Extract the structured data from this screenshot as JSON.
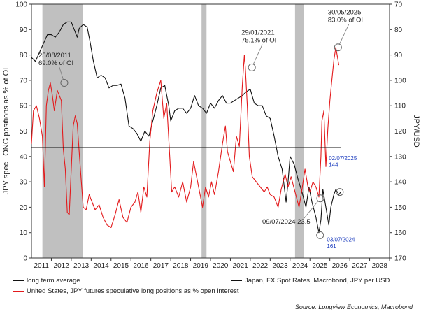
{
  "chart_data": {
    "type": "line",
    "title": "",
    "xlabel": "",
    "ylabel_left": "JPY spec LONG positions as % of OI",
    "ylabel_right": "JPY/USD",
    "x_range": [
      2010,
      2028
    ],
    "x_ticks": [
      "2011",
      "2012",
      "2013",
      "2014",
      "2015",
      "2016",
      "2017",
      "2018",
      "2019",
      "2020",
      "2021",
      "2022",
      "2023",
      "2024",
      "2025",
      "2026",
      "2027",
      "2028"
    ],
    "y_left_range": [
      0,
      100
    ],
    "y_left_ticks": [
      0,
      10,
      20,
      30,
      40,
      50,
      60,
      70,
      80,
      90,
      100
    ],
    "y_right_range": [
      70,
      170
    ],
    "y_right_inverted": true,
    "y_right_ticks": [
      70,
      80,
      90,
      100,
      110,
      120,
      130,
      140,
      150,
      160,
      170
    ],
    "recession_shading": [
      [
        2010.55,
        2012.6
      ],
      [
        2018.55,
        2018.8
      ],
      [
        2023.25,
        2023.7
      ]
    ],
    "series": [
      {
        "name": "Japan, FX Spot Rates, Macrobond, JPY per USD",
        "axis": "right",
        "color": "#111111",
        "points": [
          [
            2010.0,
            91
          ],
          [
            2010.2,
            92.5
          ],
          [
            2010.4,
            89
          ],
          [
            2010.6,
            85.5
          ],
          [
            2010.8,
            82
          ],
          [
            2011.0,
            82
          ],
          [
            2011.2,
            83
          ],
          [
            2011.4,
            81
          ],
          [
            2011.6,
            78
          ],
          [
            2011.8,
            77
          ],
          [
            2012.0,
            77
          ],
          [
            2012.2,
            81
          ],
          [
            2012.3,
            83
          ],
          [
            2012.4,
            79.5
          ],
          [
            2012.6,
            78
          ],
          [
            2012.8,
            79
          ],
          [
            2012.95,
            85
          ],
          [
            2013.1,
            92
          ],
          [
            2013.3,
            99
          ],
          [
            2013.5,
            98
          ],
          [
            2013.7,
            99
          ],
          [
            2013.9,
            103
          ],
          [
            2014.1,
            102
          ],
          [
            2014.3,
            102
          ],
          [
            2014.5,
            101.5
          ],
          [
            2014.7,
            107
          ],
          [
            2014.9,
            118
          ],
          [
            2015.1,
            119
          ],
          [
            2015.3,
            121
          ],
          [
            2015.5,
            124
          ],
          [
            2015.7,
            120
          ],
          [
            2015.9,
            122
          ],
          [
            2016.1,
            116
          ],
          [
            2016.3,
            110
          ],
          [
            2016.5,
            103
          ],
          [
            2016.7,
            102
          ],
          [
            2016.9,
            110
          ],
          [
            2017.0,
            116
          ],
          [
            2017.2,
            112
          ],
          [
            2017.4,
            111
          ],
          [
            2017.6,
            111
          ],
          [
            2017.8,
            113
          ],
          [
            2018.0,
            111
          ],
          [
            2018.2,
            106
          ],
          [
            2018.4,
            110
          ],
          [
            2018.6,
            111
          ],
          [
            2018.8,
            113
          ],
          [
            2019.0,
            109
          ],
          [
            2019.2,
            111
          ],
          [
            2019.4,
            108
          ],
          [
            2019.6,
            106
          ],
          [
            2019.8,
            109
          ],
          [
            2020.0,
            109
          ],
          [
            2020.2,
            108
          ],
          [
            2020.4,
            107
          ],
          [
            2020.6,
            106
          ],
          [
            2020.8,
            104.5
          ],
          [
            2021.0,
            103.5
          ],
          [
            2021.2,
            109
          ],
          [
            2021.4,
            110
          ],
          [
            2021.6,
            110
          ],
          [
            2021.8,
            114
          ],
          [
            2022.0,
            115
          ],
          [
            2022.2,
            122
          ],
          [
            2022.4,
            130
          ],
          [
            2022.6,
            135
          ],
          [
            2022.8,
            148
          ],
          [
            2022.9,
            140
          ],
          [
            2023.0,
            130
          ],
          [
            2023.2,
            133
          ],
          [
            2023.4,
            139
          ],
          [
            2023.6,
            144
          ],
          [
            2023.8,
            150
          ],
          [
            2023.95,
            142
          ],
          [
            2024.1,
            148
          ],
          [
            2024.3,
            154
          ],
          [
            2024.45,
            160
          ],
          [
            2024.55,
            155
          ],
          [
            2024.65,
            143
          ],
          [
            2024.8,
            150
          ],
          [
            2024.95,
            157
          ],
          [
            2025.05,
            150
          ],
          [
            2025.2,
            145
          ],
          [
            2025.3,
            143
          ],
          [
            2025.45,
            145
          ],
          [
            2025.55,
            144
          ]
        ]
      },
      {
        "name": "United States, JPY futures speculative long positions as % open interest",
        "axis": "left",
        "color": "#e31a1c",
        "points": [
          [
            2010.0,
            45
          ],
          [
            2010.1,
            58
          ],
          [
            2010.25,
            60
          ],
          [
            2010.4,
            55
          ],
          [
            2010.55,
            48
          ],
          [
            2010.65,
            28
          ],
          [
            2010.75,
            60
          ],
          [
            2010.85,
            66
          ],
          [
            2010.95,
            69
          ],
          [
            2011.05,
            64
          ],
          [
            2011.15,
            58
          ],
          [
            2011.3,
            66
          ],
          [
            2011.5,
            62
          ],
          [
            2011.6,
            43
          ],
          [
            2011.7,
            35
          ],
          [
            2011.8,
            18
          ],
          [
            2011.9,
            17
          ],
          [
            2012.0,
            35
          ],
          [
            2012.1,
            52
          ],
          [
            2012.2,
            56
          ],
          [
            2012.3,
            53
          ],
          [
            2012.45,
            36
          ],
          [
            2012.6,
            20
          ],
          [
            2012.75,
            19
          ],
          [
            2012.9,
            25
          ],
          [
            2013.0,
            23
          ],
          [
            2013.2,
            19
          ],
          [
            2013.4,
            21
          ],
          [
            2013.6,
            16
          ],
          [
            2013.8,
            13
          ],
          [
            2014.0,
            12
          ],
          [
            2014.2,
            17
          ],
          [
            2014.4,
            23
          ],
          [
            2014.6,
            16
          ],
          [
            2014.8,
            14
          ],
          [
            2015.0,
            20
          ],
          [
            2015.2,
            22
          ],
          [
            2015.35,
            26
          ],
          [
            2015.5,
            18
          ],
          [
            2015.65,
            28
          ],
          [
            2015.8,
            24
          ],
          [
            2015.95,
            46
          ],
          [
            2016.1,
            58
          ],
          [
            2016.3,
            65
          ],
          [
            2016.5,
            70
          ],
          [
            2016.65,
            55
          ],
          [
            2016.8,
            61
          ],
          [
            2016.95,
            40
          ],
          [
            2017.05,
            26
          ],
          [
            2017.2,
            28
          ],
          [
            2017.4,
            24
          ],
          [
            2017.6,
            30
          ],
          [
            2017.8,
            22
          ],
          [
            2018.0,
            28
          ],
          [
            2018.15,
            38
          ],
          [
            2018.3,
            32
          ],
          [
            2018.45,
            26
          ],
          [
            2018.6,
            20
          ],
          [
            2018.75,
            28
          ],
          [
            2018.9,
            24
          ],
          [
            2019.05,
            30
          ],
          [
            2019.2,
            25
          ],
          [
            2019.4,
            34
          ],
          [
            2019.6,
            45
          ],
          [
            2019.75,
            52
          ],
          [
            2019.85,
            42
          ],
          [
            2020.0,
            38
          ],
          [
            2020.15,
            34
          ],
          [
            2020.3,
            48
          ],
          [
            2020.45,
            44
          ],
          [
            2020.6,
            68
          ],
          [
            2020.7,
            80
          ],
          [
            2020.75,
            75
          ],
          [
            2020.85,
            60
          ],
          [
            2020.95,
            40
          ],
          [
            2021.1,
            32
          ],
          [
            2021.3,
            30
          ],
          [
            2021.5,
            28
          ],
          [
            2021.7,
            26
          ],
          [
            2021.85,
            28
          ],
          [
            2022.0,
            25
          ],
          [
            2022.2,
            24
          ],
          [
            2022.4,
            20
          ],
          [
            2022.55,
            27
          ],
          [
            2022.75,
            33
          ],
          [
            2022.9,
            28
          ],
          [
            2023.05,
            32
          ],
          [
            2023.25,
            26
          ],
          [
            2023.45,
            20
          ],
          [
            2023.6,
            27
          ],
          [
            2023.75,
            35
          ],
          [
            2023.9,
            28
          ],
          [
            2024.0,
            26
          ],
          [
            2024.15,
            30
          ],
          [
            2024.3,
            28
          ],
          [
            2024.45,
            24
          ],
          [
            2024.55,
            40
          ],
          [
            2024.6,
            54
          ],
          [
            2024.7,
            58
          ],
          [
            2024.8,
            36
          ],
          [
            2024.9,
            51
          ],
          [
            2025.0,
            62
          ],
          [
            2025.1,
            70
          ],
          [
            2025.2,
            78
          ],
          [
            2025.3,
            83
          ],
          [
            2025.45,
            76
          ]
        ]
      },
      {
        "name": "long term average",
        "axis": "left",
        "color": "#111111",
        "constant": 43.5,
        "range": [
          2010.0,
          2025.55
        ]
      }
    ],
    "annotations": [
      {
        "text": [
          "25/08/2011",
          "69.0% of OI"
        ],
        "style": "ann",
        "x": 2011.65,
        "y": 69.0,
        "axis": "left",
        "label_x": 2010.35,
        "label_y": 79,
        "leader": true
      },
      {
        "text": [
          "29/01/2021",
          "75.1% of OI"
        ],
        "style": "ann",
        "x": 2021.08,
        "y": 75.1,
        "axis": "left",
        "label_x": 2020.55,
        "label_y": 88,
        "leader": true
      },
      {
        "text": [
          "30/05/2025",
          "83.0% of OI"
        ],
        "style": "ann",
        "x": 2025.41,
        "y": 83.0,
        "axis": "left",
        "label_x": 2024.9,
        "label_y": 96,
        "leader": true
      },
      {
        "text": [
          "09/07/2024 23.5"
        ],
        "style": "ann",
        "x": 2024.52,
        "y": 23.5,
        "axis": "left",
        "label_x": 2021.6,
        "label_y": 13.5,
        "leader": true
      },
      {
        "text": [
          "02/07/2025",
          "144"
        ],
        "style": "ann-blue",
        "x": 2025.5,
        "y": 144,
        "axis": "right",
        "label_x": 2024.95,
        "label_y": 38.5,
        "leader": false
      },
      {
        "text": [
          "03/07/2024",
          "161"
        ],
        "style": "ann-blue",
        "x": 2024.51,
        "y": 161,
        "axis": "right",
        "label_x": 2024.85,
        "label_y": 6.5,
        "leader": false
      }
    ]
  },
  "legend": [
    {
      "label": "long term average",
      "color": "#111111"
    },
    {
      "label": "Japan, FX Spot Rates, Macrobond, JPY per USD",
      "color": "#111111"
    },
    {
      "label": "United States, JPY futures speculative long positions as % open interest",
      "color": "#e31a1c"
    }
  ],
  "source": "Source: Longview Economics, Macrobond"
}
